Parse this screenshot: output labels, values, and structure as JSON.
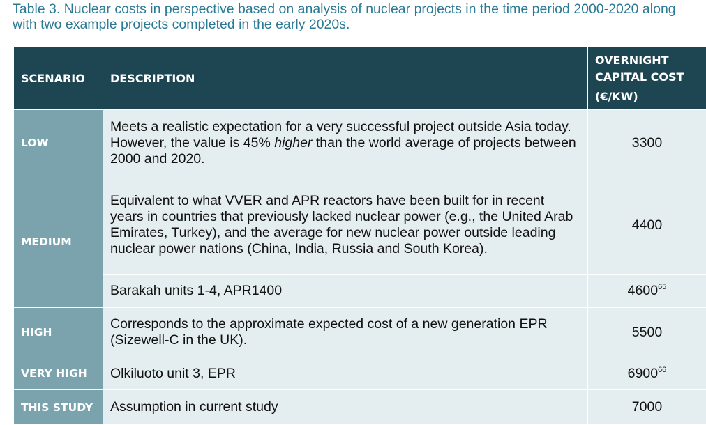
{
  "caption": {
    "line1": "Table 3. Nuclear costs in perspective based on analysis of nuclear projects in the time period 2000-2020 along",
    "line2": "with two example projects completed in the early 2020s."
  },
  "header": {
    "scenario": "SCENARIO",
    "description": "DESCRIPTION",
    "cost_line1": "OVERNIGHT",
    "cost_line2": "CAPITAL COST",
    "cost_unit": "(€/KW)"
  },
  "rows": [
    {
      "scenario": "LOW",
      "description_before": "Meets a realistic expectation for a very successful project outside Asia today. However, the value is 45% ",
      "description_emph": "higher",
      "description_after": " than the world average of projects between 2000 and 2020.",
      "cost": "3300"
    },
    {
      "scenario": "MEDIUM",
      "description": "Equivalent to what VVER and APR reactors have been built for in recent years in countries that previously lacked nuclear power (e.g., the United Arab Emirates, Turkey), and the average for new nuclear power outside leading nuclear power nations (China, India, Russia and South Korea).",
      "cost": "4400"
    },
    {
      "description": "Barakah units 1-4, APR1400",
      "cost": "4600",
      "footnote": "65"
    },
    {
      "scenario": "HIGH",
      "description": "Corresponds to the approximate expected cost of a new generation EPR (Sizewell-C in the UK).",
      "cost": "5500"
    },
    {
      "scenario": "VERY HIGH",
      "description": "Olkiluoto unit 3, EPR",
      "cost": "6900",
      "footnote": "66"
    },
    {
      "scenario": "THIS STUDY",
      "description": "Assumption in current study",
      "cost": "7000"
    }
  ],
  "colors": {
    "header_bg": "#1e4652",
    "scenario_bg": "#7ba3ae",
    "body_bg": "#e4edf0",
    "caption_text": "#2a7a96"
  }
}
